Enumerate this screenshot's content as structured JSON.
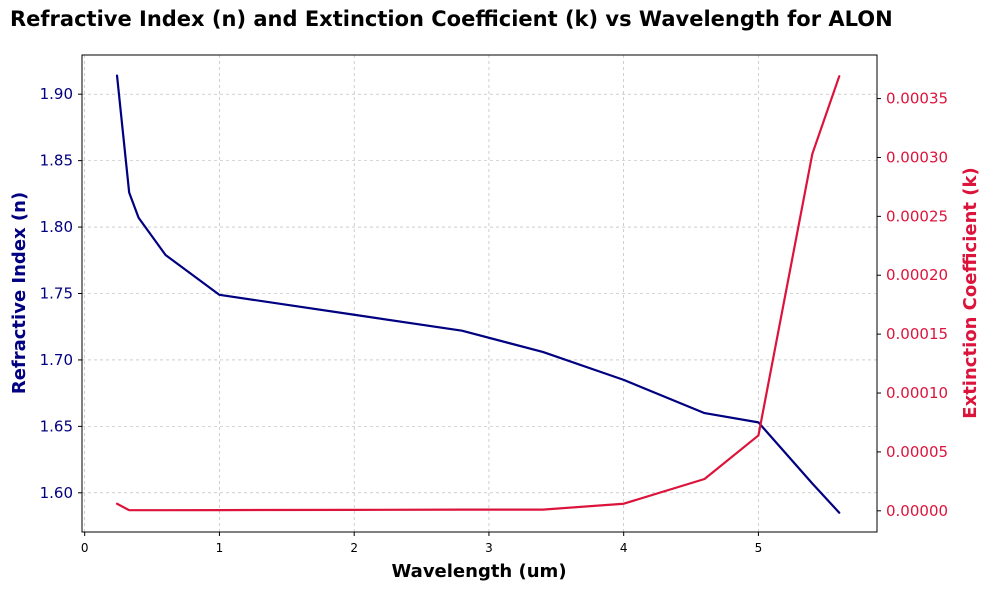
{
  "chart_data": {
    "type": "line",
    "title": "Refractive Index (n) and Extinction Coefficient (k) vs Wavelength for ALON",
    "xlabel": "Wavelength (um)",
    "ylabel_left": "Refractive Index (n)",
    "ylabel_right": "Extinction Coefficient (k)",
    "xlim": [
      -0.02,
      5.88
    ],
    "ylim_left": [
      1.5705,
      1.9295
    ],
    "ylim_right": [
      -1.8e-05,
      0.000387
    ],
    "x_ticks": [
      "0",
      "1",
      "2",
      "3",
      "4",
      "5"
    ],
    "y_ticks_left": [
      "1.60",
      "1.65",
      "1.70",
      "1.75",
      "1.80",
      "1.85",
      "1.90"
    ],
    "y_ticks_right": [
      "0.00000",
      "0.00005",
      "0.00010",
      "0.00015",
      "0.00020",
      "0.00025",
      "0.00030",
      "0.00035"
    ],
    "grid": true,
    "colors": {
      "n": "#000080",
      "k": "#dc143c"
    },
    "series": [
      {
        "axis": "left",
        "x": [
          0.24,
          0.33,
          0.4,
          0.6,
          1.0,
          2.0,
          2.8,
          3.4,
          4.0,
          4.6,
          5.0,
          5.4,
          5.6
        ],
        "values": [
          1.914,
          1.826,
          1.807,
          1.779,
          1.749,
          1.734,
          1.722,
          1.706,
          1.685,
          1.66,
          1.653,
          1.607,
          1.585
        ]
      },
      {
        "axis": "right",
        "x": [
          0.24,
          0.33,
          0.4,
          0.6,
          1.0,
          2.0,
          2.8,
          3.4,
          4.0,
          4.6,
          5.0,
          5.4,
          5.6
        ],
        "values": [
          6e-06,
          5e-07,
          5e-07,
          5e-07,
          6e-07,
          8e-07,
          1e-06,
          1e-06,
          6e-06,
          2.7e-05,
          6.4e-05,
          0.000303,
          0.000369
        ]
      }
    ]
  }
}
